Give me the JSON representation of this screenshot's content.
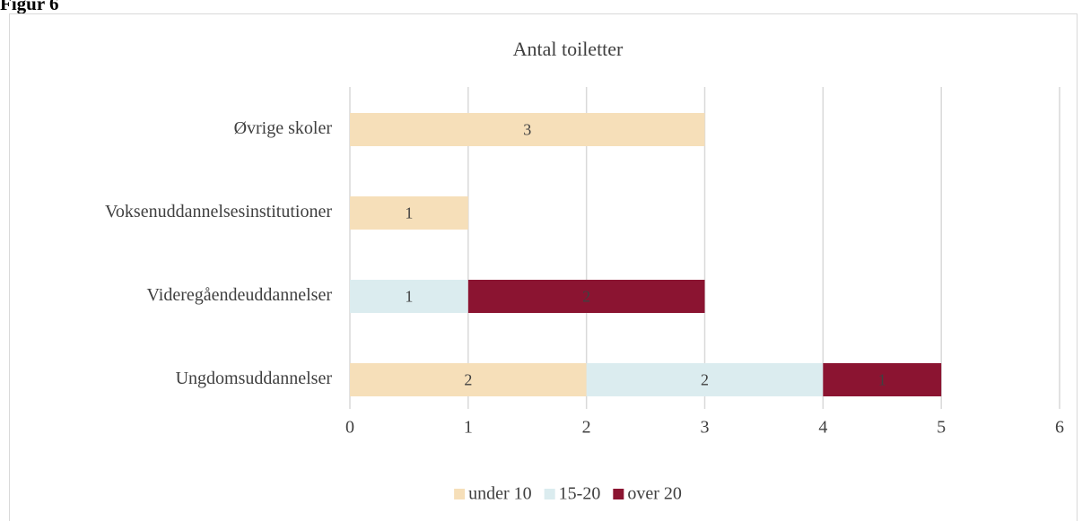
{
  "heading": "Figur 6",
  "chart_data": {
    "type": "stacked_barh",
    "title": "Antal toiletter",
    "categories": [
      "Øvrige skoler",
      "Voksenuddannelsesinstitutioner",
      "Videregåendeuddannelser",
      "Ungdomsuddannelser"
    ],
    "series": [
      {
        "name": "under 10",
        "color": "#f6dfb9",
        "values": [
          3,
          1,
          null,
          2
        ]
      },
      {
        "name": "15-20",
        "color": "#dbecef",
        "values": [
          null,
          null,
          1,
          2
        ]
      },
      {
        "name": "over 20",
        "color": "#8b1431",
        "values": [
          null,
          null,
          2,
          1
        ]
      }
    ],
    "xlim": [
      0,
      6
    ],
    "xticks": [
      0,
      1,
      2,
      3,
      4,
      5,
      6
    ],
    "grid": true,
    "legend": "bottom"
  }
}
